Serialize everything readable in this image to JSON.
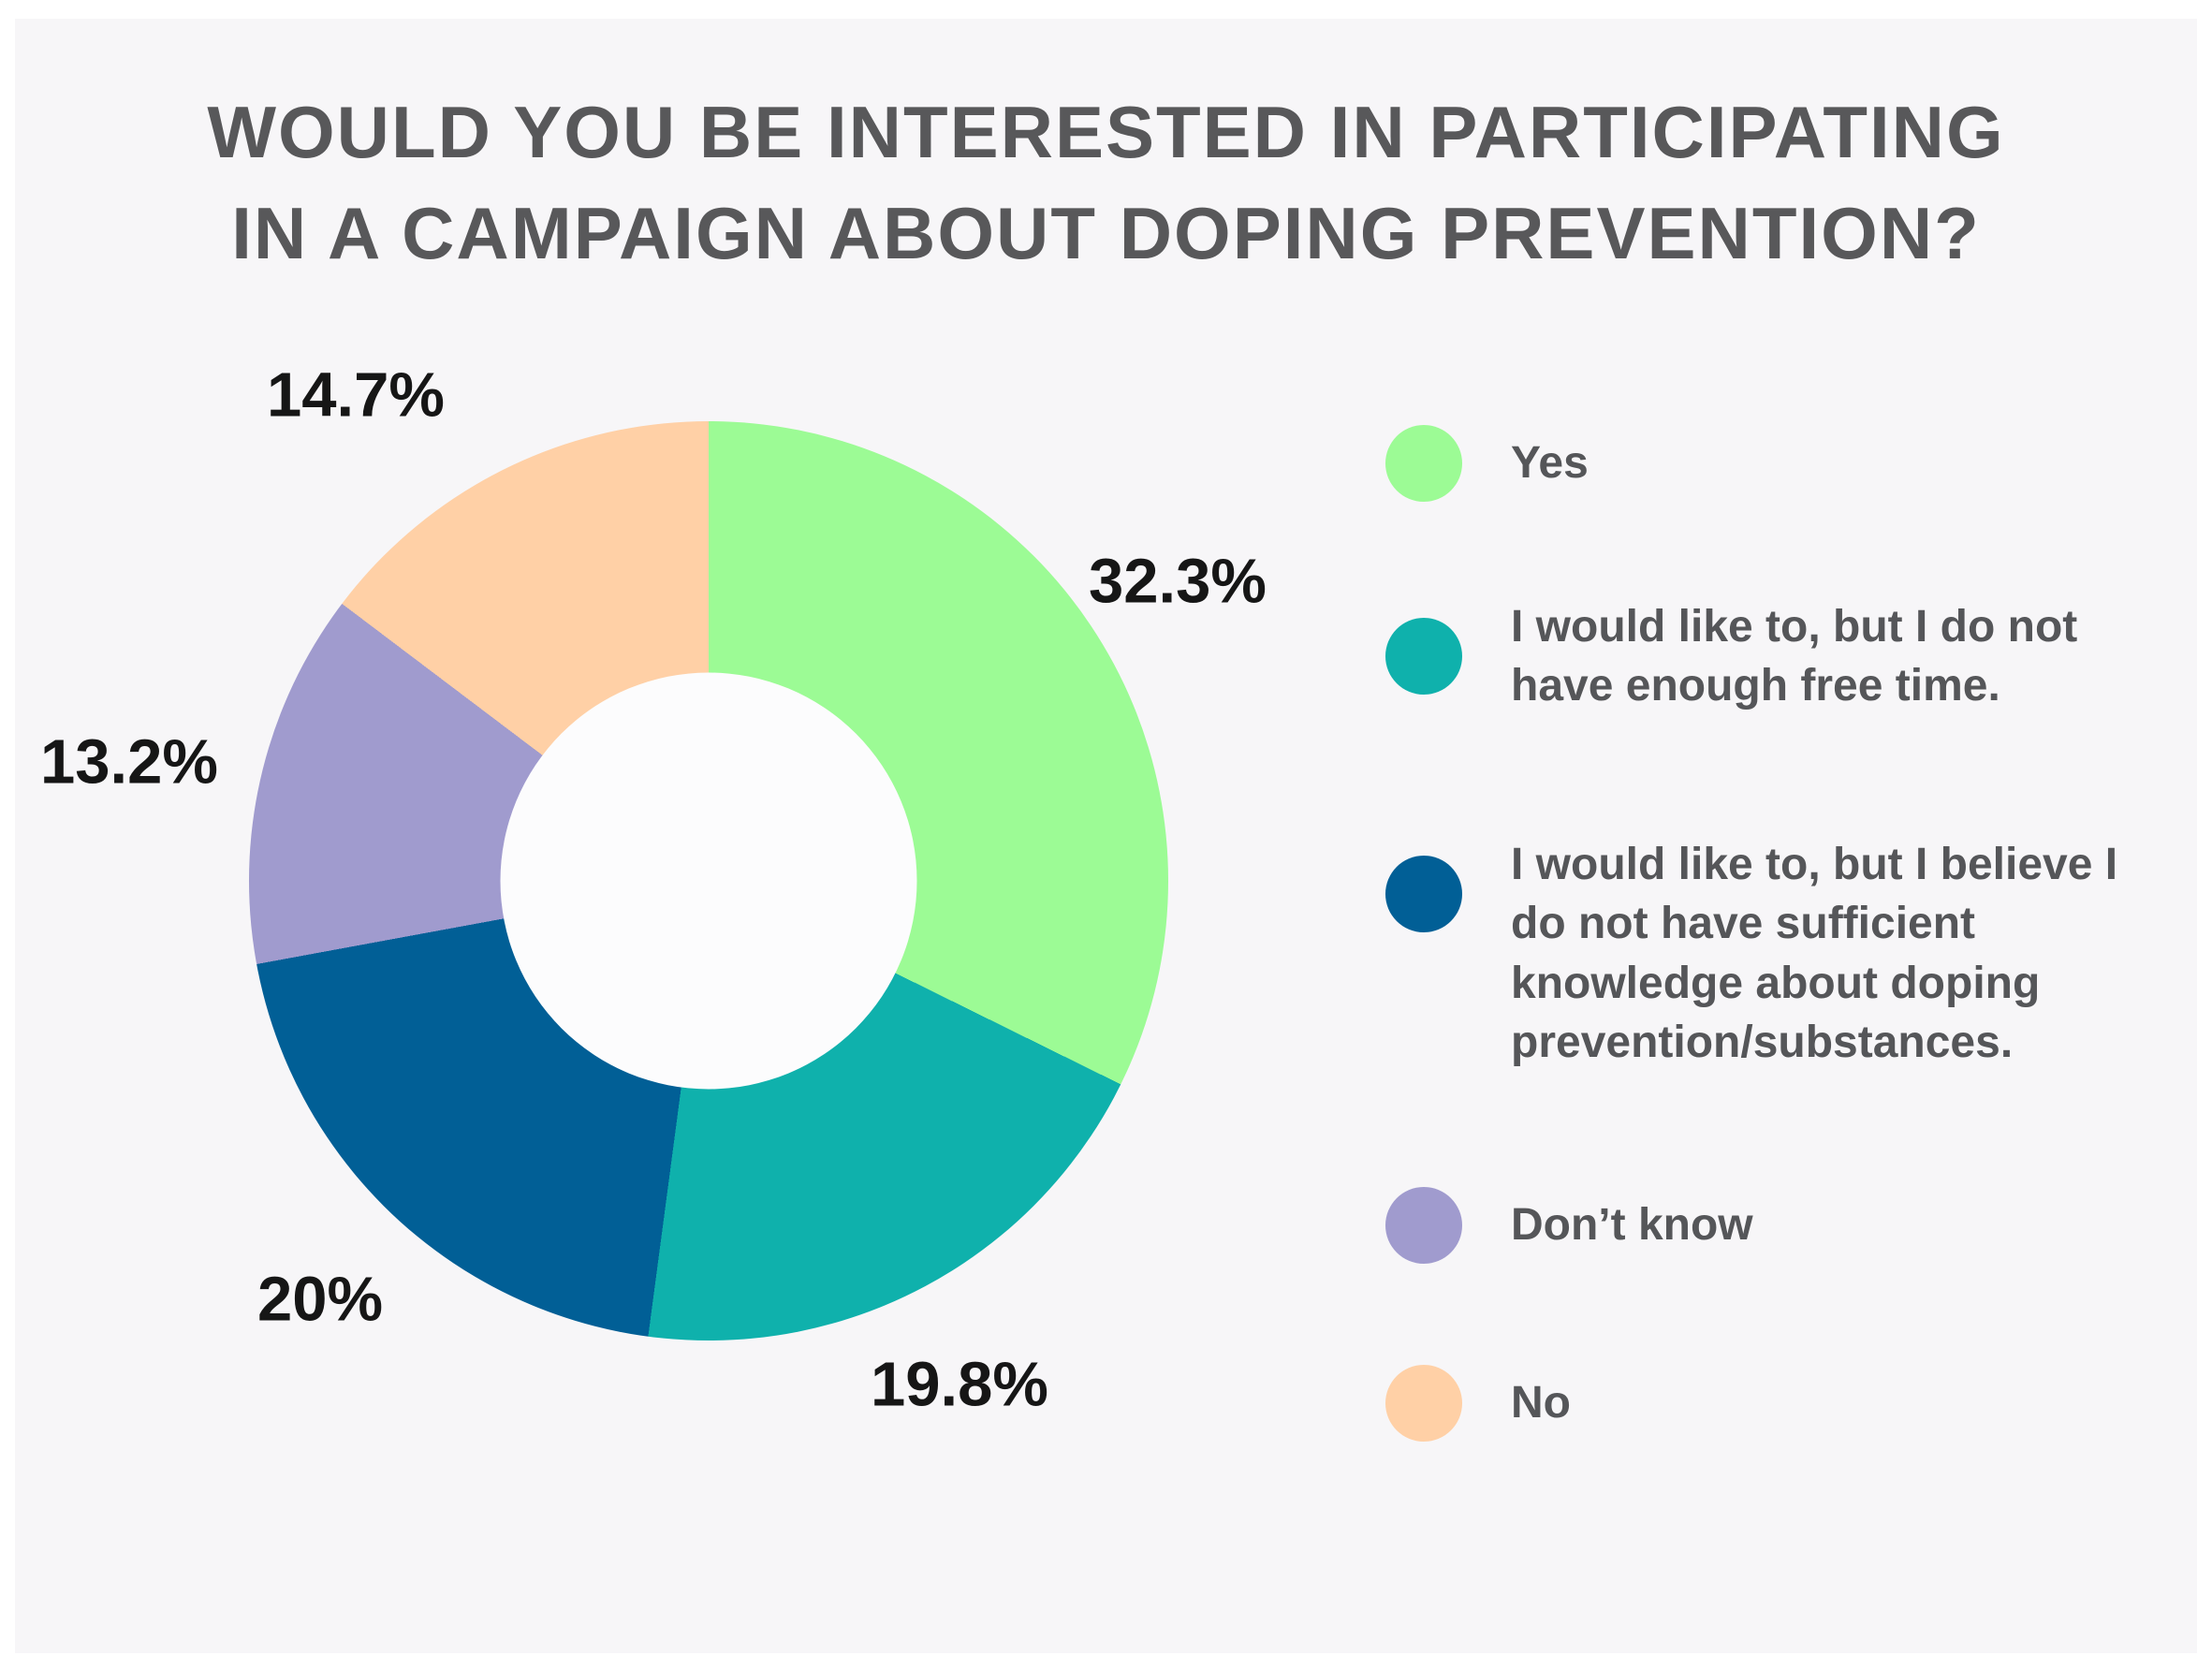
{
  "title": "WOULD YOU BE INTERESTED IN PARTICIPATING IN A CAMPAIGN ABOUT DOPING PREVENTION?",
  "chart_data": {
    "type": "pie",
    "subtype": "donut",
    "title": "WOULD YOU BE INTERESTED IN PARTICIPATING IN A CAMPAIGN ABOUT DOPING PREVENTION?",
    "start_angle_deg": 0,
    "direction": "clockwise",
    "hole_ratio": 0.45,
    "legend_position": "right",
    "data_labels": "outside, bold black percentages",
    "slices": [
      {
        "label": "Yes",
        "value": 32.3,
        "display": "32.3%",
        "color": "#9cfb95"
      },
      {
        "label": "I would like to, but I do not have enough free time.",
        "value": 19.8,
        "display": "19.8%",
        "color": "#0fb1ac"
      },
      {
        "label": "I would like to, but I believe I do not have sufficient knowledge about doping prevention/substances.",
        "value": 20,
        "display": "20%",
        "color": "#015f96"
      },
      {
        "label": "Don’t know",
        "value": 13.2,
        "display": "13.2%",
        "color": "#a09bce"
      },
      {
        "label": "No",
        "value": 14.7,
        "display": "14.7%",
        "color": "#ffd0a6"
      }
    ]
  },
  "colors": {
    "panel_background": "#f7f6f8",
    "page_background": "#ffffff",
    "title_text": "#58585a",
    "percent_text": "#161616",
    "legend_text": "#555659",
    "donut_hole": "#fcfcfd"
  }
}
